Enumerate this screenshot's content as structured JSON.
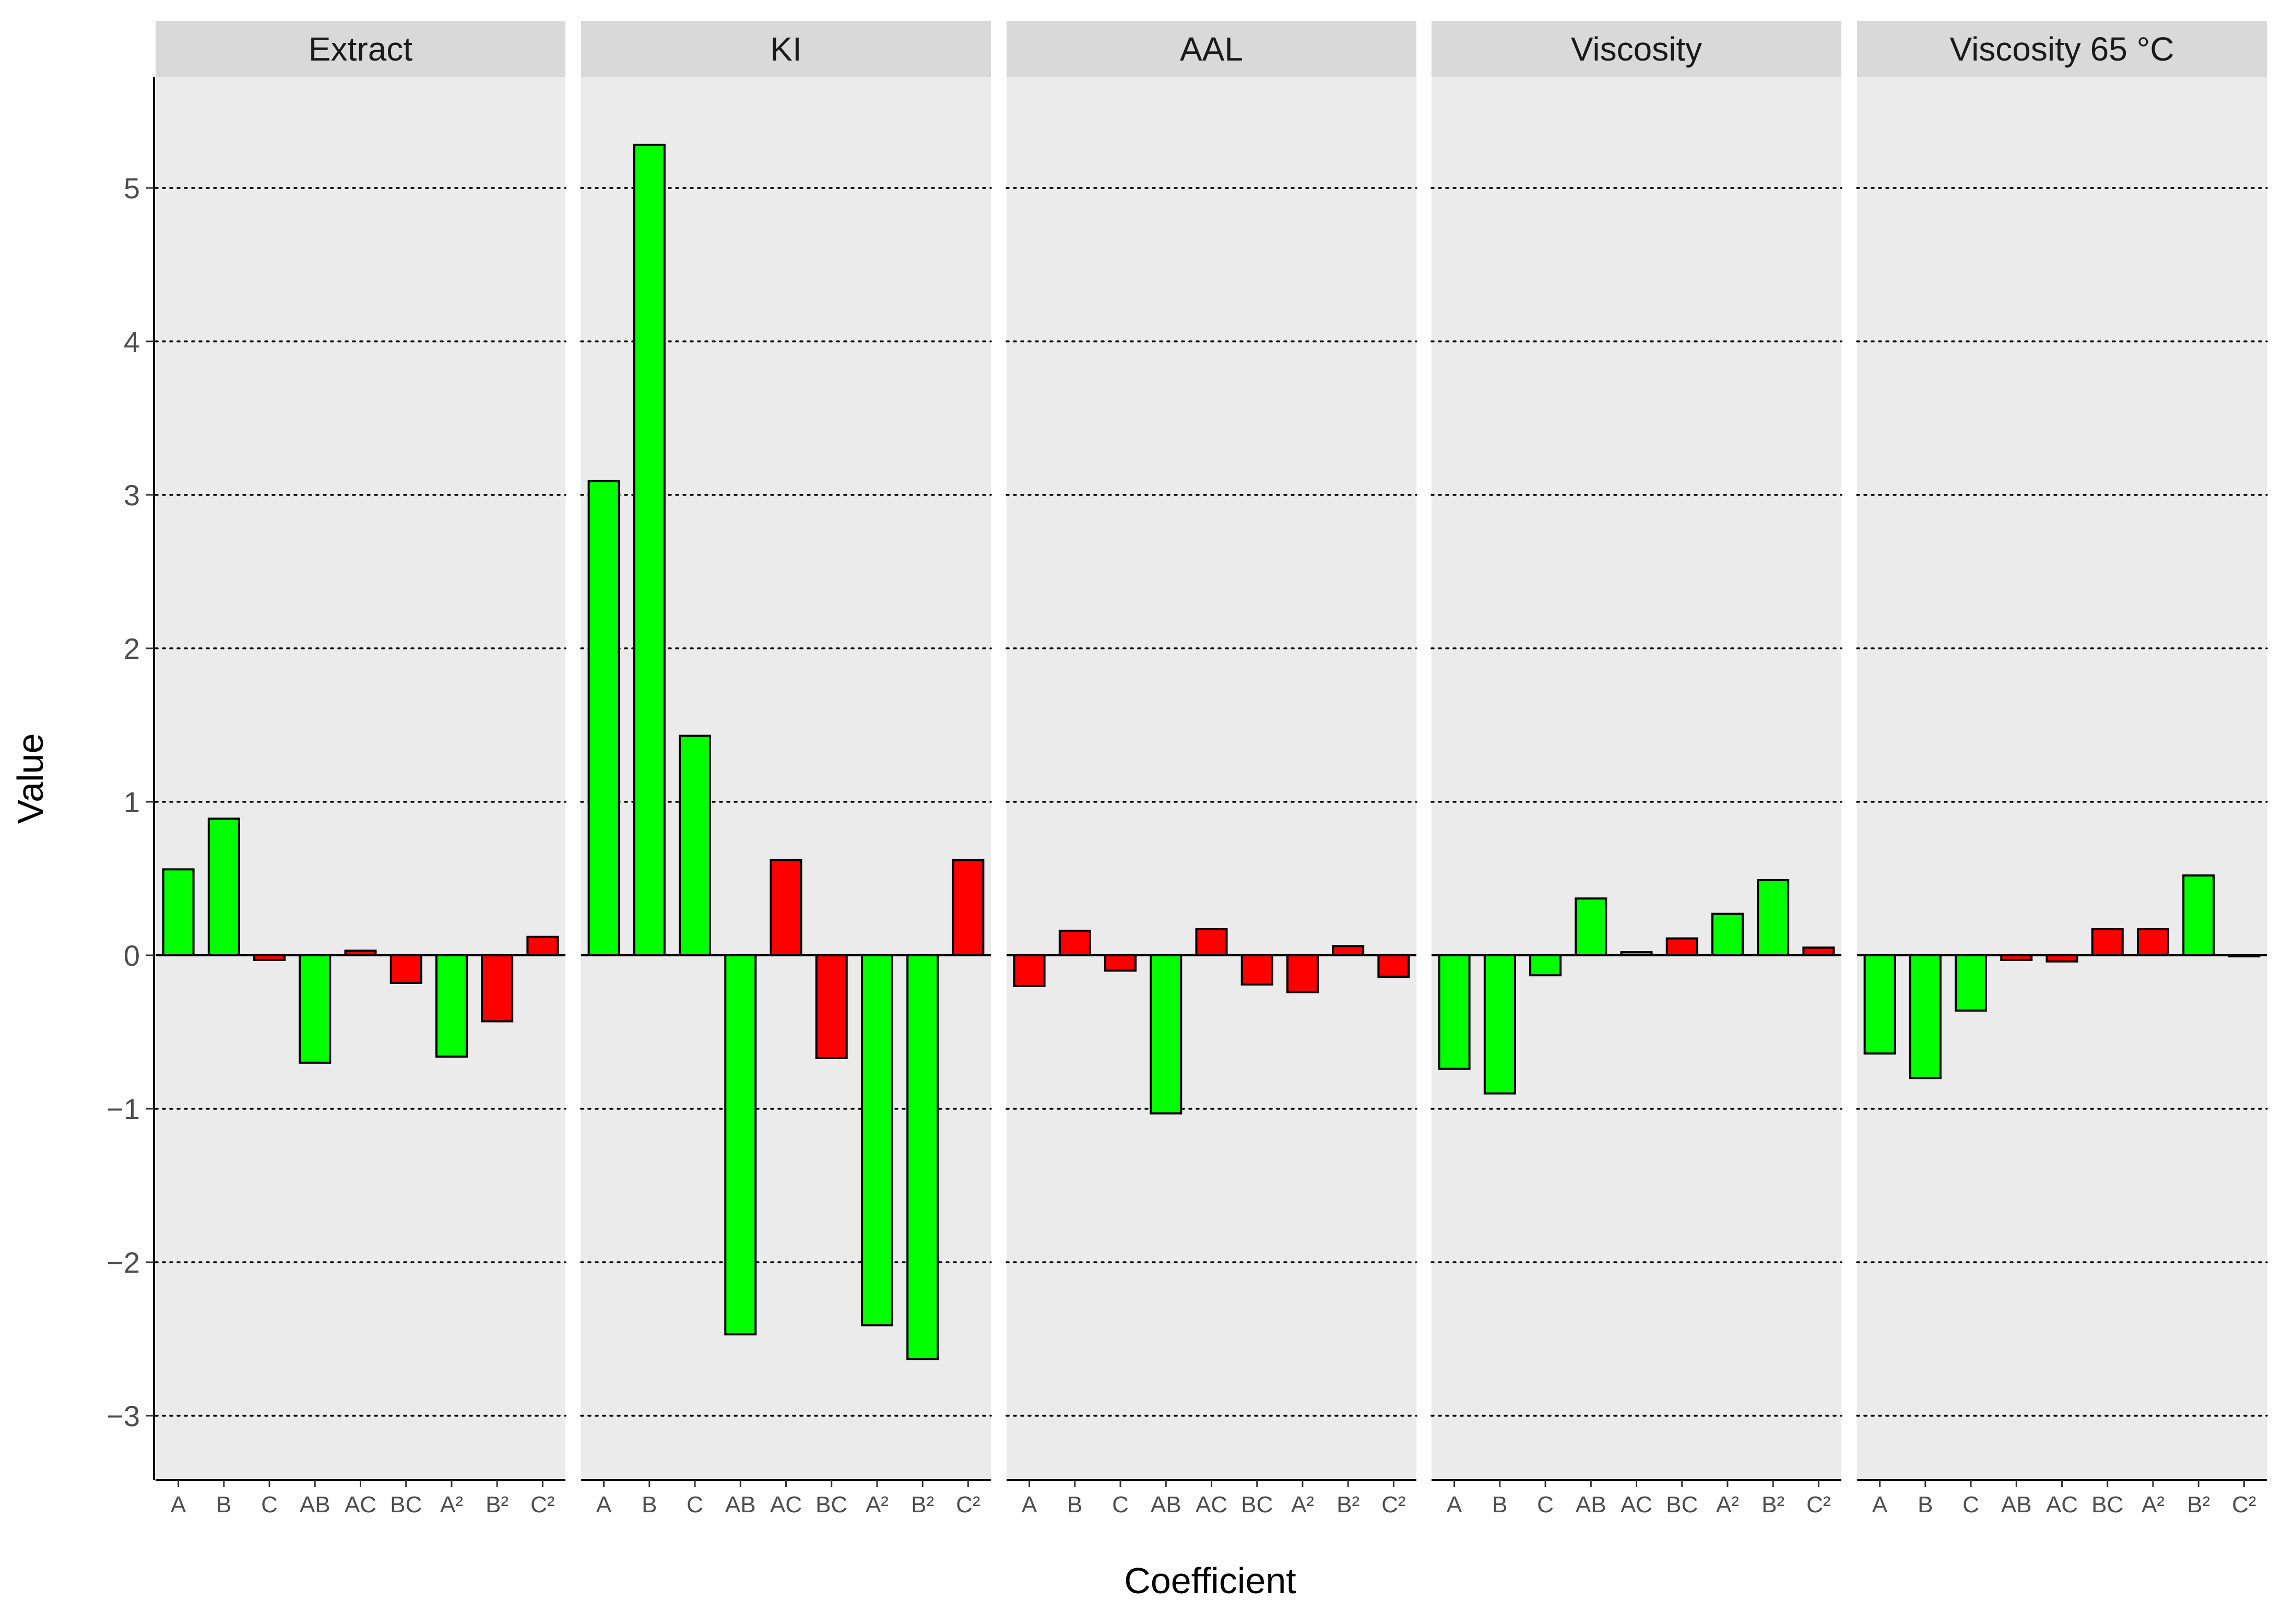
{
  "chart_data": {
    "type": "bar",
    "xlabel": "Coefficient",
    "ylabel": "Value",
    "ylim": [
      -3.35,
      5.75
    ],
    "yticks": [
      -3,
      -2,
      -1,
      0,
      1,
      2,
      3,
      4,
      5
    ],
    "ytick_labels": [
      "−3",
      "−2",
      "−1",
      "0",
      "1",
      "2",
      "3",
      "4",
      "5"
    ],
    "grid": "horizontal dotted",
    "categories": [
      "A",
      "B",
      "C",
      "AB",
      "AC",
      "BC",
      "A²",
      "B²",
      "C²"
    ],
    "colors": {
      "green": "#00ff00",
      "red": "#ff0000",
      "panel_bg": "#ebebeb",
      "strip_bg": "#d9d9d9"
    },
    "panels": [
      {
        "title": "Extract",
        "values": [
          0.56,
          0.89,
          -0.03,
          -0.7,
          0.03,
          -0.18,
          -0.66,
          -0.43,
          0.12
        ],
        "colors": [
          "green",
          "green",
          "red",
          "green",
          "red",
          "red",
          "green",
          "red",
          "red"
        ]
      },
      {
        "title": "KI",
        "values": [
          3.09,
          5.28,
          1.43,
          -2.47,
          0.62,
          -0.67,
          -2.41,
          -2.63,
          0.62
        ],
        "colors": [
          "green",
          "green",
          "green",
          "green",
          "red",
          "red",
          "green",
          "green",
          "red"
        ]
      },
      {
        "title": "AAL",
        "values": [
          -0.2,
          0.16,
          -0.1,
          -1.03,
          0.17,
          -0.19,
          -0.24,
          0.06,
          -0.14
        ],
        "colors": [
          "red",
          "red",
          "red",
          "green",
          "red",
          "red",
          "red",
          "red",
          "red"
        ]
      },
      {
        "title": "Viscosity",
        "values": [
          -0.74,
          -0.9,
          -0.13,
          0.37,
          0.02,
          0.11,
          0.27,
          0.49,
          0.05
        ],
        "colors": [
          "green",
          "green",
          "green",
          "green",
          "green",
          "red",
          "green",
          "green",
          "red"
        ]
      },
      {
        "title": "Viscosity 65 °C",
        "values": [
          -0.64,
          -0.8,
          -0.36,
          -0.03,
          -0.04,
          0.17,
          0.17,
          0.52,
          0.0
        ],
        "colors": [
          "green",
          "green",
          "green",
          "red",
          "red",
          "red",
          "red",
          "green",
          "red"
        ]
      }
    ]
  }
}
